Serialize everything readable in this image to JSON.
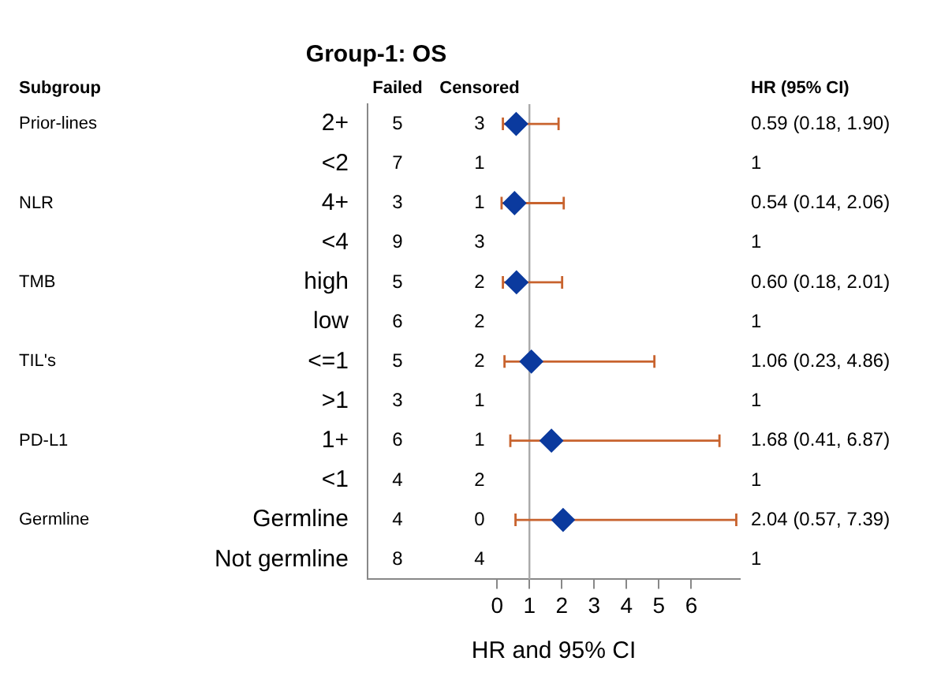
{
  "chart_data": {
    "type": "scatter",
    "orientation": "horizontal",
    "title": "Group-1: OS",
    "xlabel": "HR and 95% CI",
    "categories": [
      "2+",
      "<2",
      "4+",
      "<4",
      "high",
      "low",
      "<=1",
      ">1",
      "1+",
      "<1",
      "Germline",
      "Not germline"
    ],
    "values": [
      0.59,
      null,
      0.54,
      null,
      0.6,
      null,
      1.06,
      null,
      1.68,
      null,
      2.04,
      null
    ],
    "errors": [
      [
        0.18,
        1.9
      ],
      null,
      [
        0.14,
        2.06
      ],
      null,
      [
        0.18,
        2.01
      ],
      null,
      [
        0.23,
        4.86
      ],
      null,
      [
        0.41,
        6.87
      ],
      null,
      [
        0.57,
        7.39
      ],
      null
    ],
    "value_labels": [
      "0.59 (0.18, 1.90)",
      "1",
      "0.54 (0.14, 2.06)",
      "1",
      "0.60 (0.18, 2.01)",
      "1",
      "1.06 (0.23, 4.86)",
      "1",
      "1.68 (0.41, 6.87)",
      "1",
      "2.04 (0.57, 7.39)",
      "1"
    ],
    "color": "#0b3a9e",
    "marker": "diamond",
    "grid": false,
    "xlim": [
      -4,
      7.5
    ],
    "xticks": [
      0,
      1,
      2,
      3,
      4,
      5,
      6
    ],
    "ref_lines": [
      {
        "axis": "x",
        "value": 1,
        "color": "#aaaaaa"
      }
    ],
    "annotations": [
      "Subgroup",
      "Failed",
      "Censored",
      "HR (95% CI)",
      "Prior-lines",
      "5",
      "3",
      "7",
      "1",
      "NLR",
      "3",
      "1",
      "9",
      "3",
      "TMB",
      "5",
      "2",
      "6",
      "2",
      "TIL's",
      "5",
      "2",
      "3",
      "1",
      "PD-L1",
      "6",
      "1",
      "4",
      "2",
      "Germline",
      "4",
      "0",
      "8",
      "4"
    ]
  }
}
